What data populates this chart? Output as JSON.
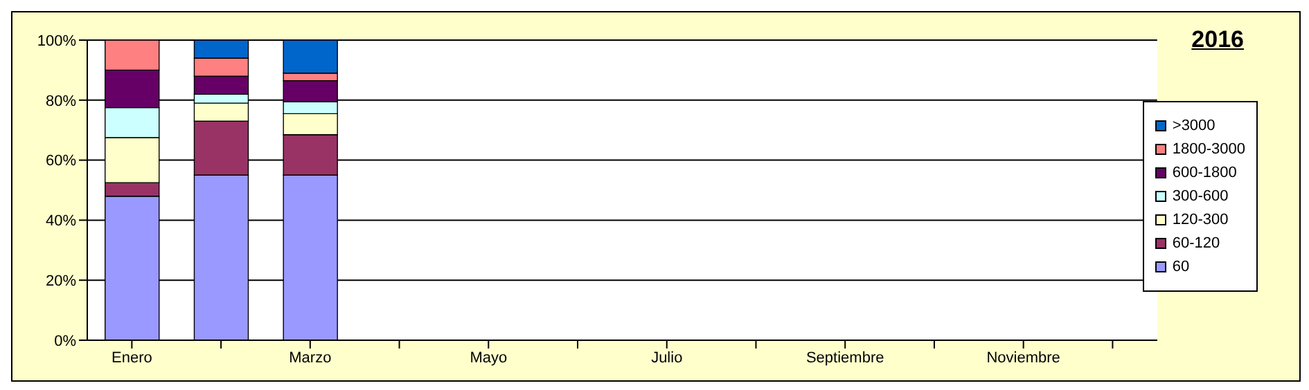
{
  "chart_data": {
    "type": "bar",
    "stacked": true,
    "title": "2016",
    "categories": [
      "Enero",
      null,
      "Marzo",
      null,
      "Mayo",
      null,
      "Julio",
      null,
      "Septiembre",
      null,
      "Noviembre",
      null
    ],
    "series": [
      {
        "name": "60",
        "color": "#9999ff",
        "values": [
          48,
          55,
          55,
          null,
          null,
          null,
          null,
          null,
          null,
          null,
          null,
          null
        ]
      },
      {
        "name": "60-120",
        "color": "#993366",
        "values": [
          4.5,
          18,
          13.5,
          null,
          null,
          null,
          null,
          null,
          null,
          null,
          null,
          null
        ]
      },
      {
        "name": "120-300",
        "color": "#ffffcc",
        "values": [
          15,
          6,
          7,
          null,
          null,
          null,
          null,
          null,
          null,
          null,
          null,
          null
        ]
      },
      {
        "name": "300-600",
        "color": "#ccffff",
        "values": [
          10,
          3,
          4,
          null,
          null,
          null,
          null,
          null,
          null,
          null,
          null,
          null
        ]
      },
      {
        "name": "600-1800",
        "color": "#660066",
        "values": [
          12.5,
          6,
          7,
          null,
          null,
          null,
          null,
          null,
          null,
          null,
          null,
          null
        ]
      },
      {
        "name": "1800-3000",
        "color": "#ff8080",
        "values": [
          10,
          6,
          2.5,
          null,
          null,
          null,
          null,
          null,
          null,
          null,
          null,
          null
        ]
      },
      {
        "name": ">3000",
        "color": "#0066cc",
        "values": [
          0,
          6,
          11,
          null,
          null,
          null,
          null,
          null,
          null,
          null,
          null,
          null
        ]
      }
    ],
    "ylim": [
      0,
      100
    ],
    "yticks": [
      {
        "value": 0,
        "label": "0%"
      },
      {
        "value": 20,
        "label": "20%"
      },
      {
        "value": 40,
        "label": "40%"
      },
      {
        "value": 60,
        "label": "60%"
      },
      {
        "value": 80,
        "label": "80%"
      },
      {
        "value": 100,
        "label": "100%"
      }
    ],
    "grid": "y",
    "legend": "right"
  }
}
